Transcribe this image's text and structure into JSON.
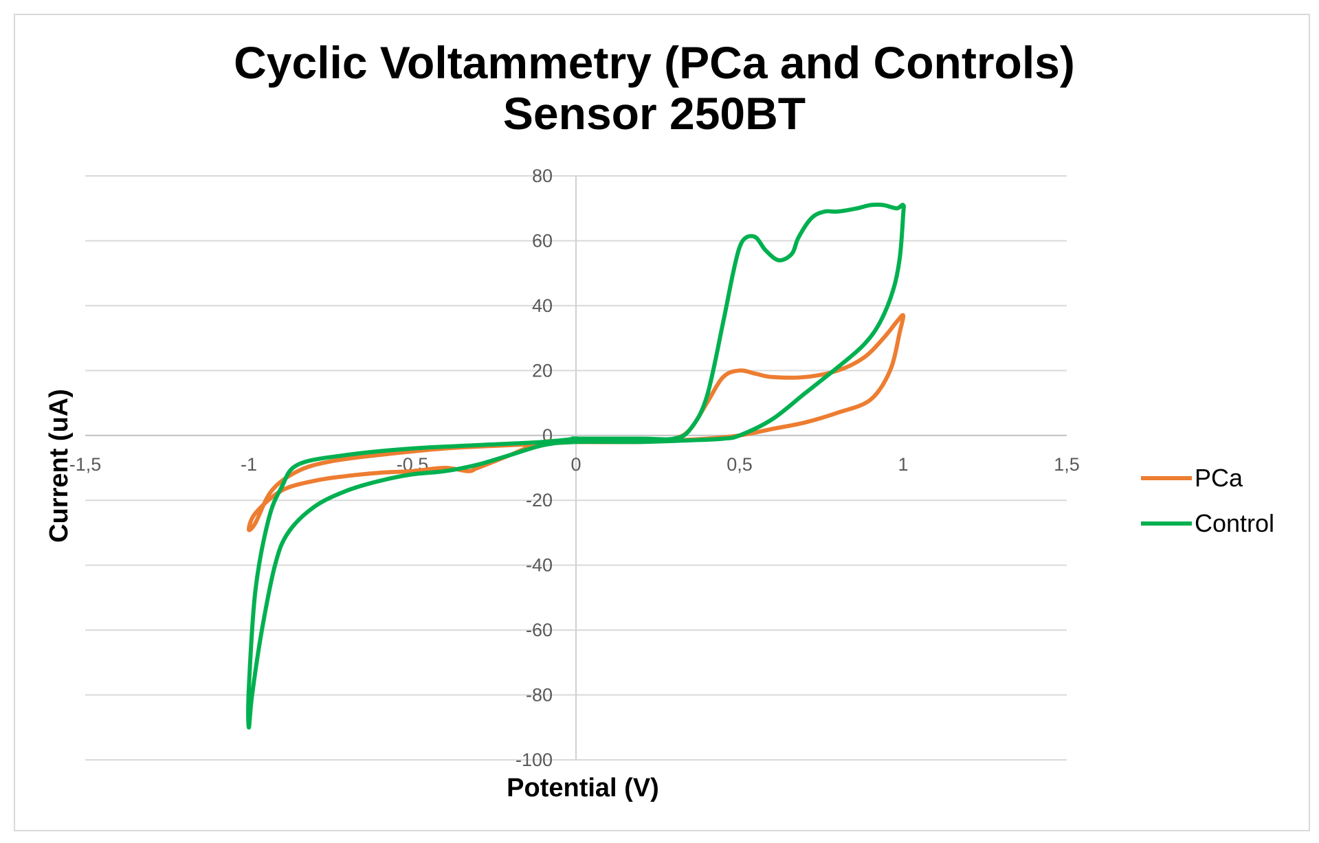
{
  "chart_data": {
    "type": "line",
    "title": [
      "Cyclic Voltammetry (PCa and Controls)",
      "Sensor 250BT"
    ],
    "xlabel": "Potential (V)",
    "ylabel": "Current (uA)",
    "xlim": [
      -1.5,
      1.5
    ],
    "ylim": [
      -100,
      80
    ],
    "xticks": [
      -1.5,
      -1,
      -0.5,
      0,
      0.5,
      1,
      1.5
    ],
    "xtick_labels": [
      "-1,5",
      "-1",
      "-0,5",
      "0",
      "0,5",
      "1",
      "1,5"
    ],
    "yticks": [
      80,
      60,
      40,
      20,
      0,
      -20,
      -40,
      -60,
      -80,
      -100
    ],
    "ytick_labels": [
      "80",
      "60",
      "40",
      "20",
      "0",
      "-20",
      "-40",
      "-60",
      "-80",
      "-100"
    ],
    "grid": true,
    "legend_position": "right",
    "series": [
      {
        "name": "PCa",
        "color": "#ED7D31",
        "x": [
          0.0,
          0.2,
          0.3,
          0.35,
          0.4,
          0.45,
          0.5,
          0.55,
          0.6,
          0.7,
          0.8,
          0.88,
          0.94,
          0.98,
          1.0,
          0.99,
          0.96,
          0.9,
          0.8,
          0.7,
          0.6,
          0.5,
          0.4,
          0.3,
          0.2,
          0.1,
          0.0,
          -0.1,
          -0.2,
          -0.3,
          -0.33,
          -0.4,
          -0.5,
          -0.6,
          -0.7,
          -0.8,
          -0.9,
          -0.98,
          -1.0,
          -0.98,
          -0.93,
          -0.85,
          -0.75,
          -0.6,
          -0.4,
          -0.2,
          -0.1,
          0.0
        ],
        "y": [
          -2,
          -2,
          -1,
          2,
          10,
          18,
          20,
          19,
          18,
          18,
          20,
          24,
          30,
          35,
          37,
          32,
          20,
          11,
          7,
          4,
          2,
          0,
          -1,
          -1.5,
          -2,
          -2,
          -2,
          -2,
          -6,
          -10,
          -11,
          -10,
          -11,
          -11.5,
          -12.5,
          -14,
          -17,
          -24,
          -29,
          -27,
          -17,
          -11,
          -8,
          -6,
          -4,
          -3,
          -2.5,
          -2
        ]
      },
      {
        "name": "Control",
        "color": "#00B050",
        "x": [
          0.0,
          0.2,
          0.3,
          0.35,
          0.4,
          0.45,
          0.48,
          0.5,
          0.52,
          0.55,
          0.58,
          0.62,
          0.66,
          0.68,
          0.72,
          0.76,
          0.8,
          0.86,
          0.9,
          0.94,
          0.98,
          1.0,
          1.0,
          0.99,
          0.97,
          0.93,
          0.88,
          0.8,
          0.7,
          0.6,
          0.5,
          0.45,
          0.35,
          0.2,
          0.0,
          -0.1,
          -0.2,
          -0.3,
          -0.4,
          -0.5,
          -0.6,
          -0.7,
          -0.8,
          -0.88,
          -0.92,
          -0.96,
          -0.99,
          -1.0,
          -1.0,
          -0.98,
          -0.94,
          -0.9,
          -0.85,
          -0.7,
          -0.5,
          -0.3,
          -0.1,
          0.0
        ],
        "y": [
          -1,
          -1,
          -1,
          2,
          12,
          35,
          50,
          58,
          61,
          61,
          57,
          54,
          56,
          61,
          67,
          69,
          69,
          70,
          71,
          71,
          70,
          71,
          68,
          55,
          45,
          35,
          28,
          21,
          13,
          5,
          0,
          -1,
          -1.5,
          -2,
          -2,
          -3,
          -6,
          -9,
          -11,
          -12,
          -14,
          -17,
          -22,
          -30,
          -40,
          -60,
          -80,
          -90,
          -78,
          -48,
          -26,
          -16,
          -9,
          -6,
          -4,
          -3,
          -2,
          -1
        ]
      }
    ]
  }
}
